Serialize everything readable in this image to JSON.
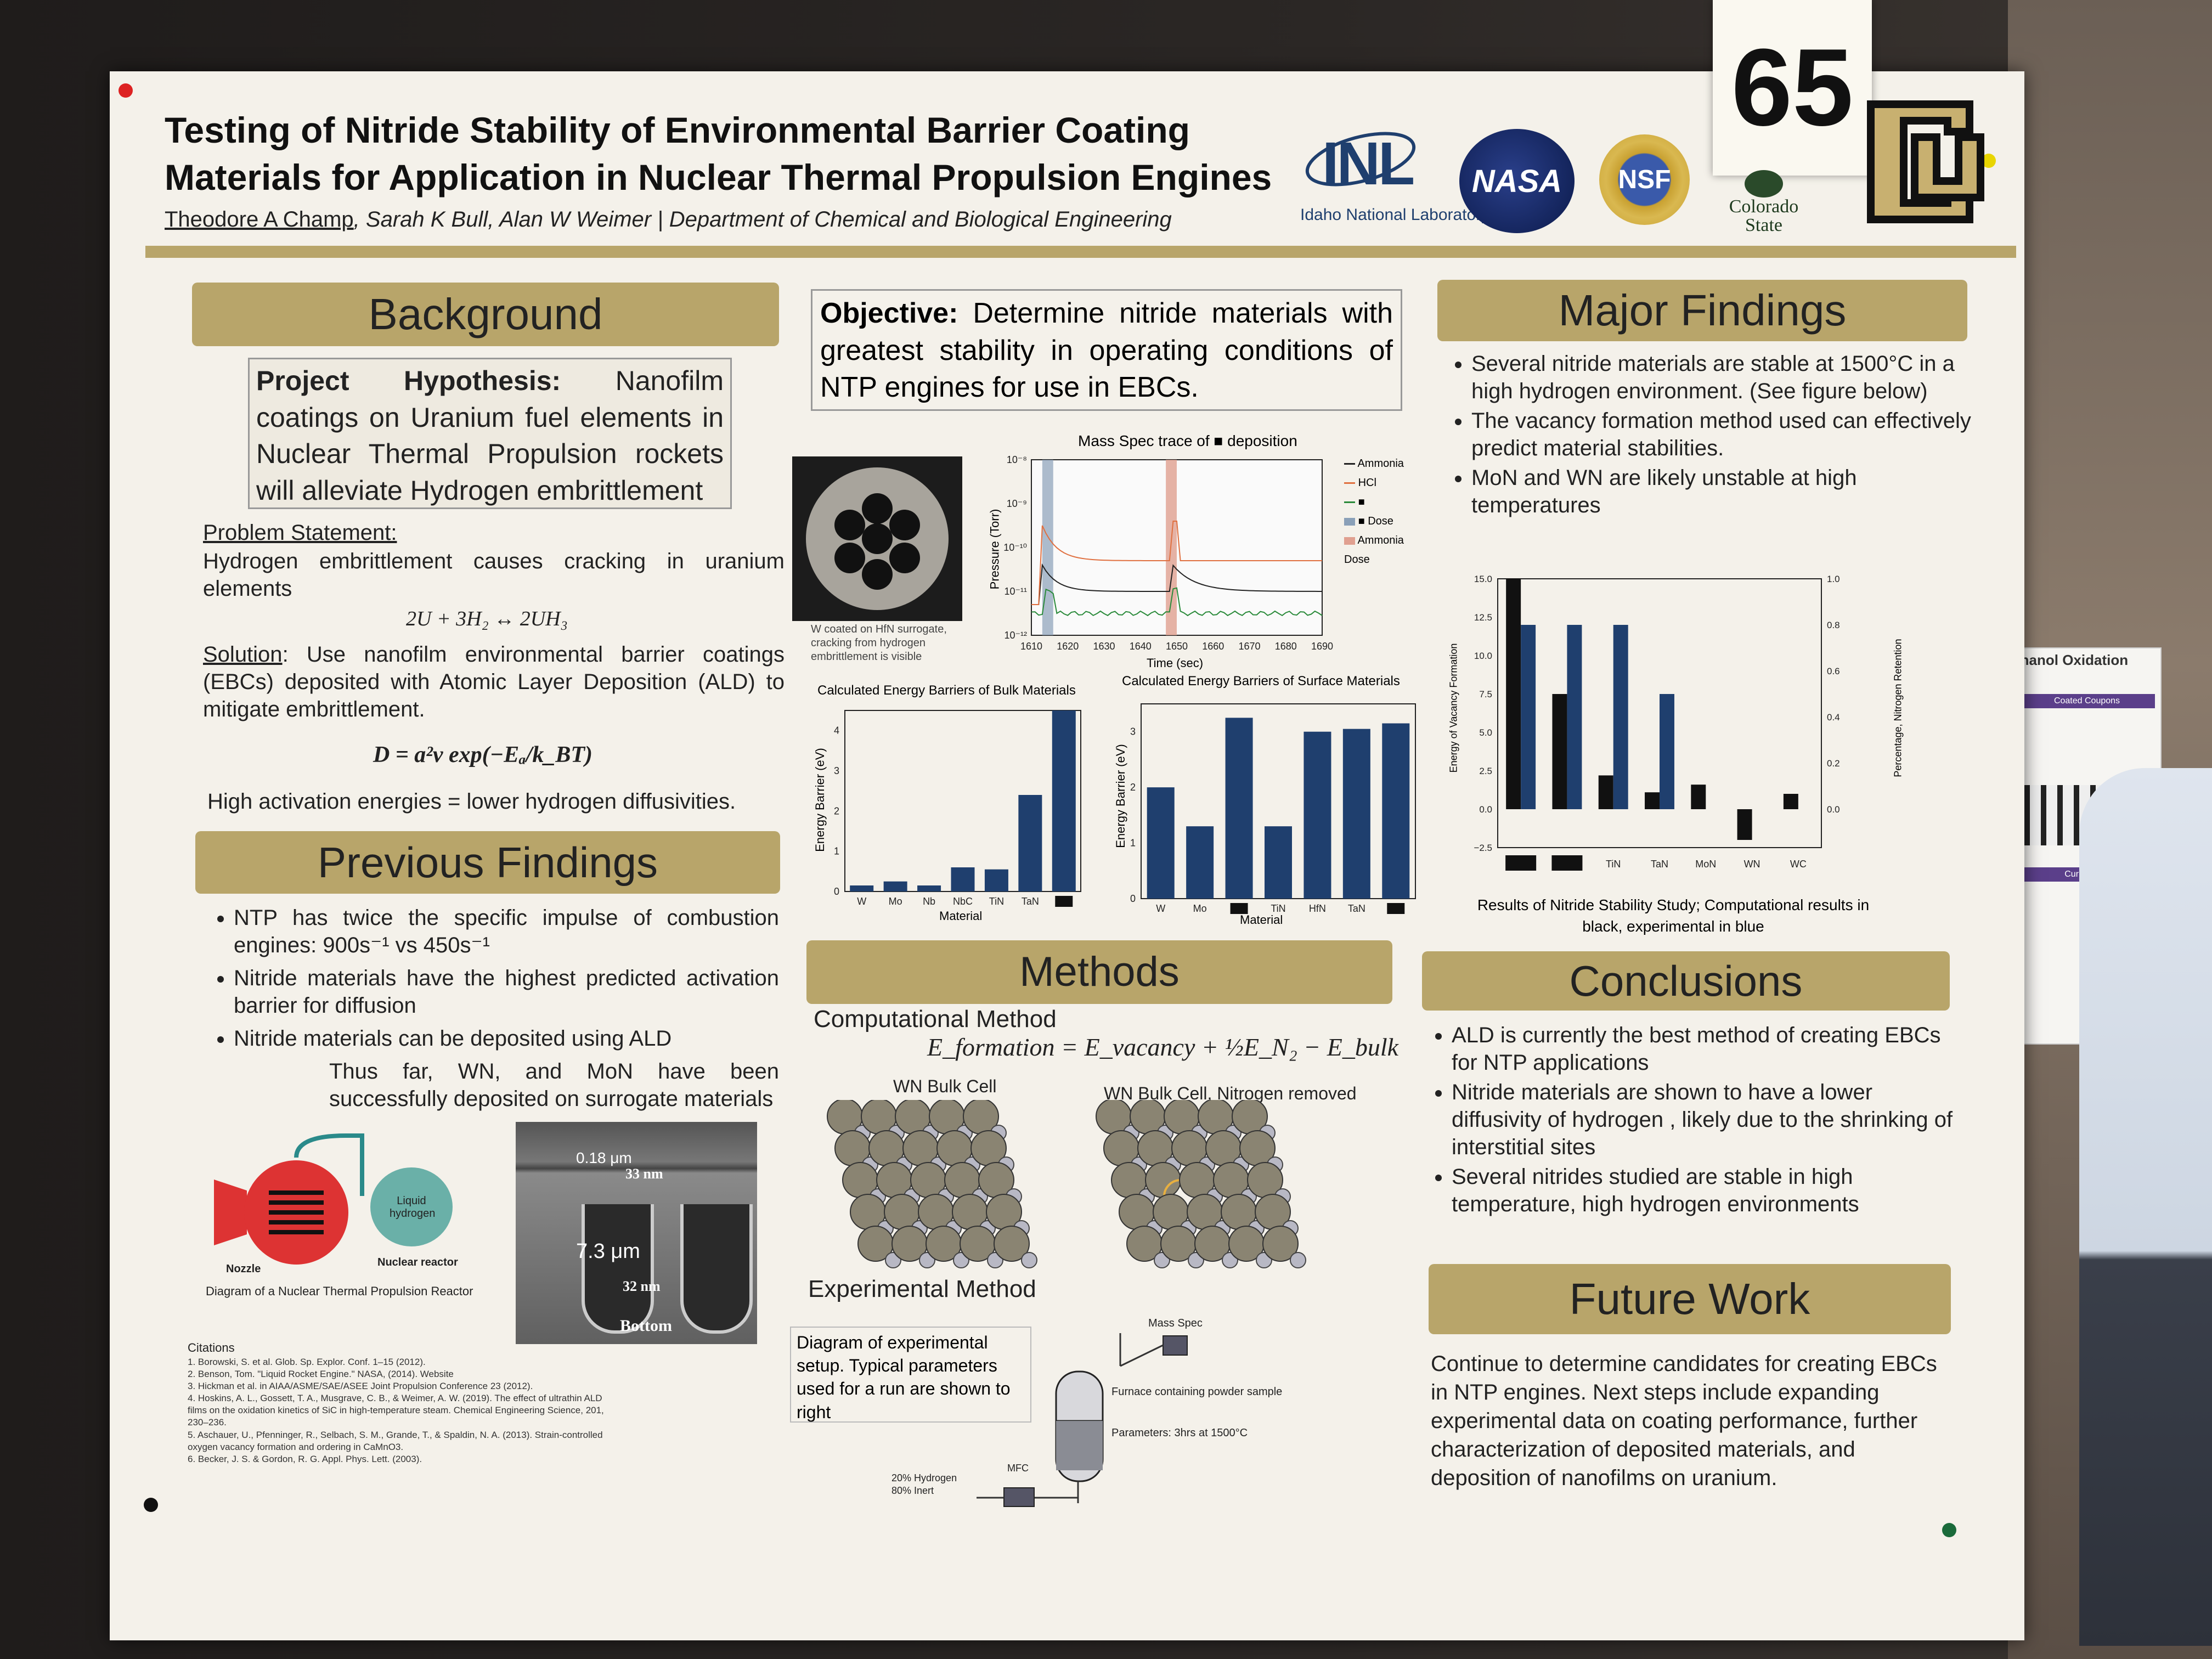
{
  "badge": "65",
  "title_line1": "Testing of Nitride Stability of Environmental Barrier Coating",
  "title_line2": "Materials for Application in Nuclear Thermal Propulsion Engines",
  "authors_main": "Theodore A Champ",
  "authors_rest": ", Sarah K Bull, Alan W Weimer | Department of Chemical and Biological Engineering",
  "logos": {
    "inl": "INL",
    "inl_sub": "Idaho National Laboratory",
    "nasa": "NASA",
    "nsf": "NSF",
    "csu": "Colorado State"
  },
  "background": {
    "header": "Background",
    "hypothesis_label": "Project Hypothesis:",
    "hypothesis": " Nanofilm coatings on Uranium fuel elements in Nuclear Thermal Propulsion rockets will alleviate Hydrogen embrittlement",
    "problem_label": "Problem Statement:",
    "problem": "Hydrogen embrittlement causes cracking in uranium elements",
    "reaction": "2U + 3H₂ ↔ 2UH₃",
    "solution_label": "Solution",
    "solution": ": Use nanofilm environmental barrier coatings (EBCs) deposited with Atomic Layer Deposition (ALD) to mitigate embrittlement.",
    "equation": "D = a²v exp(−Eₐ/k_BT)",
    "note": "High activation energies = lower hydrogen diffusivities."
  },
  "previous": {
    "header": "Previous Findings",
    "items": [
      "NTP has twice the specific impulse of combustion engines: 900s⁻¹ vs 450s⁻¹",
      "Nitride materials have the highest predicted activation barrier for diffusion",
      "Nitride materials can be deposited using ALD"
    ],
    "subitem": "Thus far, WN, and MoN have been successfully deposited on surrogate materials",
    "reactor_caption": "Diagram of a Nuclear Thermal Propulsion Reactor",
    "reactor_labels": {
      "liquid": "Liquid hydrogen",
      "nozzle": "Nozzle",
      "reactor": "Nuclear reactor"
    },
    "sem_labels": {
      "t1": "0.18 μm",
      "t2": "33 nm",
      "t3": "7.3 μm",
      "t4": "32 nm",
      "t5": "Bottom"
    }
  },
  "citations": {
    "header": "Citations",
    "items": [
      "1. Borowski, S. et al. Glob. Sp. Explor. Conf. 1–15 (2012).",
      "2. Benson, Tom. \"Liquid Rocket Engine.\" NASA, (2014). Website",
      "3. Hickman et al. in AIAA/ASME/SAE/ASEE Joint Propulsion Conference 23 (2012).",
      "4. Hoskins, A. L., Gossett, T. A., Musgrave, C. B., & Weimer, A. W. (2019). The effect of ultrathin ALD films on the oxidation kinetics of SiC in high-temperature steam. Chemical Engineering Science, 201, 230–236.",
      "5. Aschauer, U., Pfenninger, R., Selbach, S. M., Grande, T., & Spaldin, N. A. (2013). Strain-controlled oxygen vacancy formation and ordering in CaMnO3.",
      "6. Becker, J. S. & Gordon, R. G. Appl. Phys. Lett. (2003)."
    ]
  },
  "objective": {
    "label": "Objective:",
    "text": " Determine nitride materials with greatest stability in operating conditions of NTP engines for use in EBCs."
  },
  "micro_caption": "W coated on HfN surrogate, cracking from hydrogen embrittlement is visible",
  "mass_spec": {
    "title": "Mass Spec trace of ■ deposition",
    "xlabel": "Time (sec)",
    "ylabel": "Pressure (Torr)",
    "legend": [
      "Ammonia",
      "HCl",
      "■",
      "■ Dose",
      "Ammonia Dose"
    ],
    "xticks": [
      "1610",
      "1620",
      "1630",
      "1640",
      "1650",
      "1660",
      "1670",
      "1680",
      "1690"
    ],
    "yticks": [
      "10⁻⁸",
      "10⁻⁹",
      "10⁻¹⁰",
      "10⁻¹¹",
      "10⁻¹²"
    ]
  },
  "chart_data": [
    {
      "type": "bar",
      "title": "Calculated Energy Barriers of Bulk Materials",
      "xlabel": "Material",
      "ylabel": "Energy Barrier (eV)",
      "categories": [
        "W",
        "Mo",
        "Nb",
        "NbC",
        "TiN",
        "TaN",
        "■"
      ],
      "values": [
        0.15,
        0.25,
        0.15,
        0.6,
        0.55,
        2.4,
        4.5
      ],
      "ylim": [
        0,
        4.5
      ],
      "yticks": [
        "0",
        "1",
        "2",
        "3",
        "4"
      ]
    },
    {
      "type": "bar",
      "title": "Calculated Energy Barriers of Surface Materials",
      "xlabel": "Material",
      "ylabel": "Energy Barrier (eV)",
      "categories": [
        "W",
        "Mo",
        "■",
        "TiN",
        "HfN",
        "TaN",
        "■"
      ],
      "values": [
        2.0,
        1.3,
        3.25,
        1.3,
        3.0,
        3.05,
        3.15
      ],
      "ylim": [
        0,
        3.5
      ],
      "yticks": [
        "0",
        "1",
        "2",
        "3"
      ]
    },
    {
      "type": "bar",
      "title": "Results of Nitride Stability Study; Computational results in black, experimental in blue",
      "ylabel": "Energy of Vacancy Formation",
      "ylabel2": "Percentage, Nitrogen Retention",
      "categories": [
        "■",
        "■",
        "TiN",
        "TaN",
        "MoN",
        "WN",
        "WC"
      ],
      "series": [
        {
          "values": [
            15.0,
            7.5,
            2.2,
            1.1,
            1.6,
            -2.0,
            1.0
          ]
        },
        {
          "values": [
            0.8,
            0.8,
            0.8,
            0.5,
            null,
            null,
            null
          ]
        }
      ],
      "ylim": [
        -2.5,
        15.0
      ],
      "ylim2": [
        0,
        1.0
      ],
      "yticks": [
        "15.0",
        "12.5",
        "10.0",
        "7.5",
        "5.0",
        "2.5",
        "0.0",
        "−2.5"
      ],
      "yticks2": [
        "1.0",
        "0.8",
        "0.6",
        "0.4",
        "0.2",
        "0.0"
      ]
    }
  ],
  "methods": {
    "header": "Methods",
    "comp_label": "Computational Method",
    "equation": "E_formation = E_vacancy + ½E_N₂ − E_bulk",
    "cell1": "WN Bulk Cell",
    "cell2": "WN Bulk Cell, Nitrogen removed",
    "exp_label": "Experimental Method",
    "exp_caption": "Diagram of experimental setup. Typical parameters used for a run are shown to right",
    "mass_spec": "Mass Spec",
    "furnace": "Furnace containing powder sample",
    "params": "Parameters: 3hrs at 1500°C",
    "gas": "20% Hydrogen 80% Inert",
    "mfc": "MFC"
  },
  "major": {
    "header": "Major Findings",
    "items": [
      "Several nitride materials are stable at 1500°C in a high hydrogen environment. (See figure below)",
      "The vacancy formation method used can effectively predict material stabilities.",
      "MoN and WN are likely unstable at high temperatures"
    ]
  },
  "conclusions": {
    "header": "Conclusions",
    "items": [
      "ALD is currently the best method of creating EBCs for NTP applications",
      "Nitride materials are shown to have a lower diffusivity of hydrogen , likely due to the shrinking of interstitial sites",
      "Several nitrides studied are stable in high temperature, high hydrogen environments"
    ]
  },
  "future": {
    "header": "Future Work",
    "text": "Continue to determine candidates for creating EBCs in NTP engines. Next steps include expanding experimental data on coating performance, further characterization of deposited materials, and deposition of nanofilms on uranium."
  },
  "side_poster": {
    "title": "thanol Oxidation",
    "btn1": "Coated Coupons",
    "btn2": "Current Wo"
  },
  "colors": {
    "gold": "#b8a56a",
    "blue": "#1f3f6e",
    "black": "#111111",
    "orange": "#e07040",
    "green": "#2a8a3a"
  }
}
